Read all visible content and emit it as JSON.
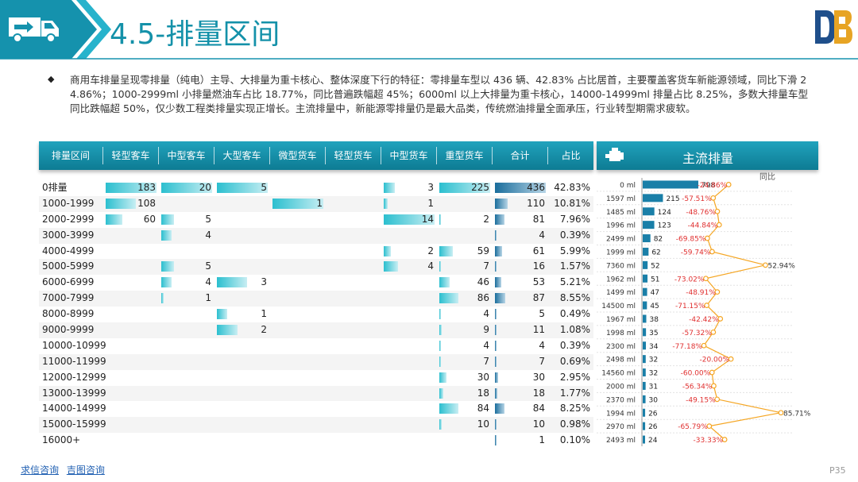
{
  "header": {
    "title": "4.5-排量区间",
    "icon": "truck-icon",
    "logo": "db-logo"
  },
  "summary": "商用车排量呈现零排量（纯电）主导、大排量为重卡核心、整体深度下行的特征：零排量车型以 436 辆、42.83% 占比居首，主要覆盖客货车新能源领域，同比下滑 24.86%；1000-2999ml 小排量燃油车占比 18.77%，同比普遍跌幅超 45%；6000ml 以上大排量为重卡核心，14000-14999ml 排量占比 8.25%，多数大排量车型同比跌幅超 50%，仅少数工程类排量实现正增长。主流排量中，新能源零排量仍是最大品类，传统燃油排量全面承压，行业转型期需求疲软。",
  "table": {
    "headers": [
      "排量区间",
      "轻型客车",
      "中型客车",
      "大型客车",
      "微型货车",
      "轻型货车",
      "中型货车",
      "重型货车",
      "合计",
      "占比"
    ],
    "rows": [
      {
        "label": "0排量",
        "values": [
          183,
          20,
          5,
          null,
          null,
          3,
          225,
          436
        ],
        "pct": "42.83%"
      },
      {
        "label": "1000-1999",
        "values": [
          108,
          null,
          null,
          1,
          null,
          1,
          null,
          110
        ],
        "pct": "10.81%"
      },
      {
        "label": "2000-2999",
        "values": [
          60,
          5,
          null,
          null,
          null,
          14,
          2,
          81
        ],
        "pct": "7.96%"
      },
      {
        "label": "3000-3999",
        "values": [
          null,
          4,
          null,
          null,
          null,
          null,
          null,
          4
        ],
        "pct": "0.39%"
      },
      {
        "label": "4000-4999",
        "values": [
          null,
          null,
          null,
          null,
          null,
          2,
          59,
          61
        ],
        "pct": "5.99%"
      },
      {
        "label": "5000-5999",
        "values": [
          null,
          5,
          null,
          null,
          null,
          4,
          7,
          16
        ],
        "pct": "1.57%"
      },
      {
        "label": "6000-6999",
        "values": [
          null,
          4,
          3,
          null,
          null,
          null,
          46,
          53
        ],
        "pct": "5.21%"
      },
      {
        "label": "7000-7999",
        "values": [
          null,
          1,
          null,
          null,
          null,
          null,
          86,
          87
        ],
        "pct": "8.55%"
      },
      {
        "label": "8000-8999",
        "values": [
          null,
          null,
          1,
          null,
          null,
          null,
          4,
          5
        ],
        "pct": "0.49%"
      },
      {
        "label": "9000-9999",
        "values": [
          null,
          null,
          2,
          null,
          null,
          null,
          9,
          11
        ],
        "pct": "1.08%"
      },
      {
        "label": "10000-10999",
        "values": [
          null,
          null,
          null,
          null,
          null,
          null,
          4,
          4
        ],
        "pct": "0.39%"
      },
      {
        "label": "11000-11999",
        "values": [
          null,
          null,
          null,
          null,
          null,
          null,
          7,
          7
        ],
        "pct": "0.69%"
      },
      {
        "label": "12000-12999",
        "values": [
          null,
          null,
          null,
          null,
          null,
          null,
          30,
          30
        ],
        "pct": "2.95%"
      },
      {
        "label": "13000-13999",
        "values": [
          null,
          null,
          null,
          null,
          null,
          null,
          18,
          18
        ],
        "pct": "1.77%"
      },
      {
        "label": "14000-14999",
        "values": [
          null,
          null,
          null,
          null,
          null,
          null,
          84,
          84
        ],
        "pct": "8.25%"
      },
      {
        "label": "15000-15999",
        "values": [
          null,
          null,
          null,
          null,
          null,
          null,
          10,
          10
        ],
        "pct": "0.98%"
      },
      {
        "label": "16000+",
        "values": [
          null,
          null,
          null,
          null,
          null,
          null,
          null,
          1
        ],
        "pct": "0.10%"
      }
    ]
  },
  "main": {
    "title": "主流排量",
    "icon": "engine-icon",
    "yoy_label": "同比"
  },
  "chart_data": {
    "type": "bar",
    "title": "主流排量",
    "categories": [
      "0 ml",
      "1597 ml",
      "1485 ml",
      "1996 ml",
      "2499 ml",
      "1999 ml",
      "7360 ml",
      "1962 ml",
      "1499 ml",
      "14500 ml",
      "1967 ml",
      "1998 ml",
      "2300 ml",
      "2498 ml",
      "14560 ml",
      "2000 ml",
      "2370 ml",
      "1994 ml",
      "2970 ml",
      "2493 ml"
    ],
    "series": [
      {
        "values": [
          798,
          215,
          124,
          123,
          82,
          62,
          52,
          51,
          47,
          45,
          38,
          35,
          34,
          32,
          32,
          31,
          30,
          26,
          26,
          24
        ]
      },
      {
        "name": "同比",
        "values": [
          -24.86,
          -57.51,
          -48.76,
          -44.84,
          -69.85,
          -59.74,
          52.94,
          -73.02,
          -48.91,
          -71.15,
          -42.42,
          -57.32,
          -77.18,
          -20.0,
          -60.0,
          -56.34,
          -49.15,
          85.71,
          -65.79,
          -33.33
        ]
      }
    ],
    "yoy_labels": [
      "-24.86%",
      "-57.51%",
      "-48.76%",
      "-44.84%",
      "-69.85%",
      "-59.74%",
      "52.94%",
      "-73.02%",
      "-48.91%",
      "-71.15%",
      "-42.42%",
      "-57.32%",
      "-77.18%",
      "-20.00%",
      "-60.00%",
      "-56.34%",
      "-49.15%",
      "85.71%",
      "-65.79%",
      "-33.33%"
    ],
    "colors": {
      "bar": "#1a7fa8",
      "line": "#f5a623",
      "neg": "#e03030",
      "pos": "#333333"
    }
  },
  "footer": {
    "link1": "求信咨询",
    "link2": "吉图咨询"
  },
  "page": "P35",
  "colors": {
    "accent": "#1491a9",
    "header_dark": "#0d7b93",
    "bar_teal": "#2bbfcf",
    "bar_blue": "#1a6d9c"
  }
}
